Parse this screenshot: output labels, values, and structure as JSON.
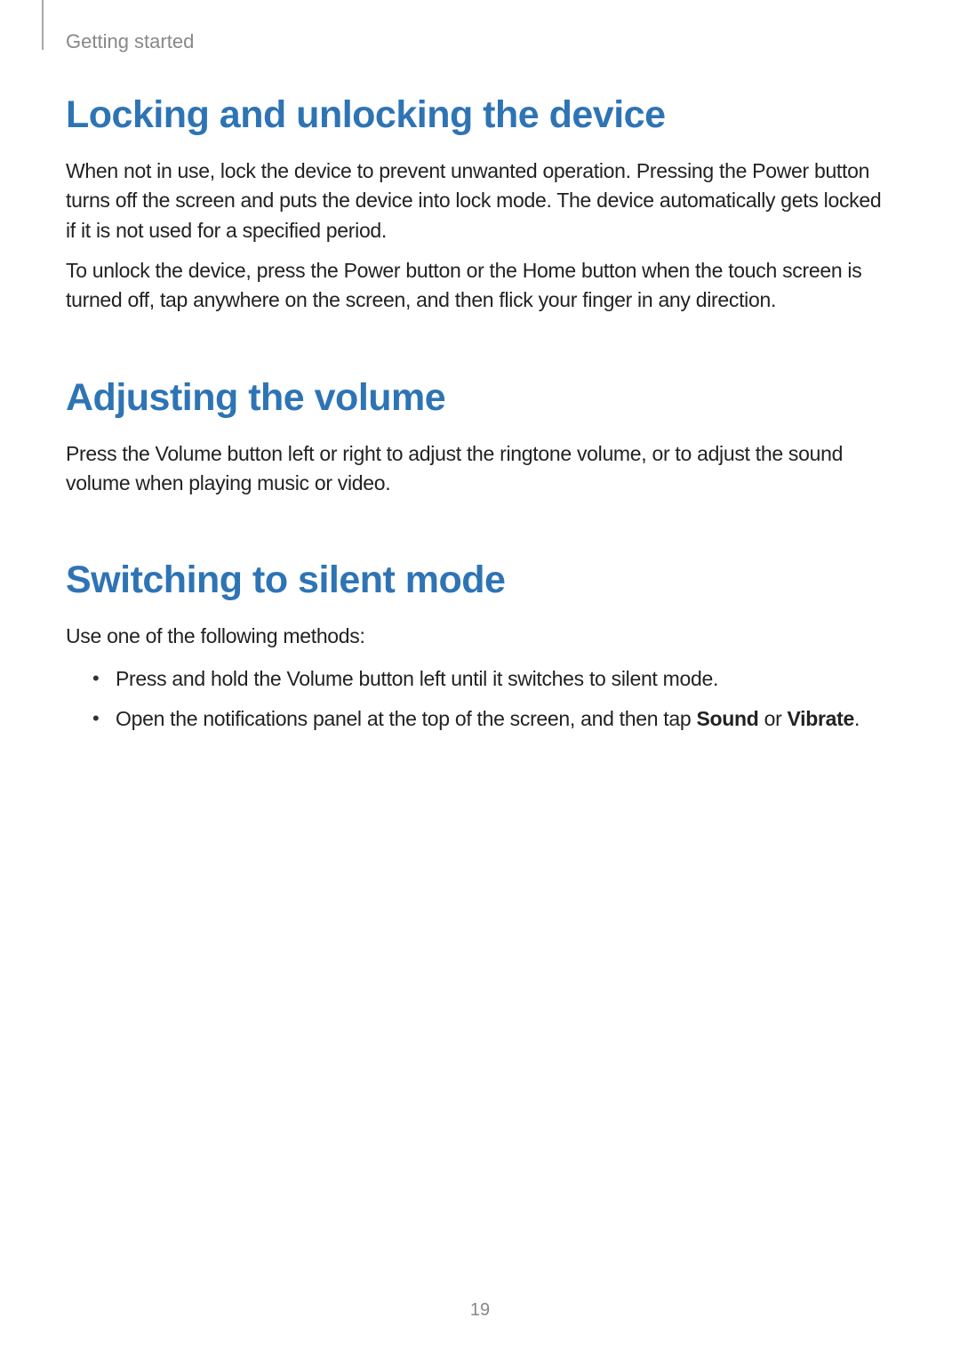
{
  "colors": {
    "heading": "#2e74b5",
    "body_text": "#222222",
    "breadcrumb": "#888888",
    "page_number": "#888888",
    "background": "#ffffff",
    "page_mark": "#a8a8a8"
  },
  "typography": {
    "heading_fontsize": 43,
    "body_fontsize": 23,
    "breadcrumb_fontsize": 22,
    "page_number_fontsize": 20
  },
  "breadcrumb": "Getting started",
  "page_number": "19",
  "sections": [
    {
      "heading": "Locking and unlocking the device",
      "paragraphs": [
        "When not in use, lock the device to prevent unwanted operation. Pressing the Power button turns off the screen and puts the device into lock mode. The device automatically gets locked if it is not used for a specified period.",
        "To unlock the device, press the Power button or the Home button when the touch screen is turned off, tap anywhere on the screen, and then flick your finger in any direction."
      ]
    },
    {
      "heading": "Adjusting the volume",
      "paragraphs": [
        "Press the Volume button left or right to adjust the ringtone volume, or to adjust the sound volume when playing music or video."
      ]
    },
    {
      "heading": "Switching to silent mode",
      "paragraphs": [
        "Use one of the following methods:"
      ],
      "bullets": [
        {
          "text": "Press and hold the Volume button left until it switches to silent mode."
        },
        {
          "prefix": "Open the notifications panel at the top of the screen, and then tap ",
          "bold1": "Sound",
          "mid": " or ",
          "bold2": "Vibrate",
          "suffix": "."
        }
      ]
    }
  ]
}
